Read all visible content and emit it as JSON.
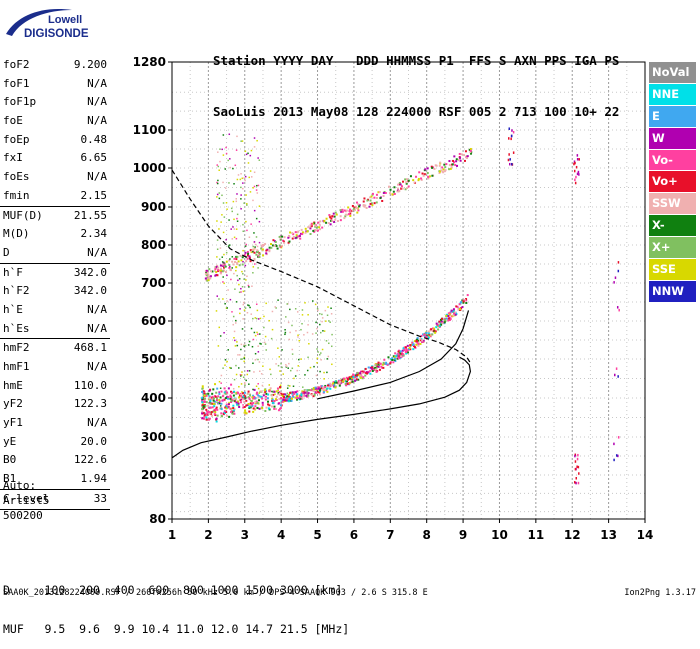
{
  "logo": {
    "line1": "Lowell",
    "line2": "DIGISONDE"
  },
  "header": {
    "line1": "Station YYYY DAY   DDD HHMMSS P1  FFS S AXN PPS IGA PS",
    "line2": "SaoLuis 2013 May08 128 224000 RSF 005 2 713 100 10+ 22"
  },
  "params": [
    {
      "k": "foF2",
      "v": "9.200"
    },
    {
      "k": "foF1",
      "v": "N/A"
    },
    {
      "k": "foF1p",
      "v": "N/A"
    },
    {
      "k": "foE",
      "v": "N/A"
    },
    {
      "k": "foEp",
      "v": "0.48"
    },
    {
      "k": "fxI",
      "v": "6.65"
    },
    {
      "k": "foEs",
      "v": "N/A"
    },
    {
      "k": "fmin",
      "v": "2.15"
    },
    {
      "sep": true
    },
    {
      "k": "MUF(D)",
      "v": "21.55"
    },
    {
      "k": "M(D)",
      "v": "2.34"
    },
    {
      "k": "D",
      "v": "N/A"
    },
    {
      "sep": true
    },
    {
      "k": "h`F",
      "v": "342.0"
    },
    {
      "k": "h`F2",
      "v": "342.0"
    },
    {
      "k": "h`E",
      "v": "N/A"
    },
    {
      "k": "h`Es",
      "v": "N/A"
    },
    {
      "sep": true
    },
    {
      "k": "hmF2",
      "v": "468.1"
    },
    {
      "k": "hmF1",
      "v": "N/A"
    },
    {
      "k": "hmE",
      "v": "110.0"
    },
    {
      "k": "yF2",
      "v": "122.3"
    },
    {
      "k": "yF1",
      "v": "N/A"
    },
    {
      "k": "yE",
      "v": "20.0"
    },
    {
      "k": "B0",
      "v": "122.6"
    },
    {
      "k": "B1",
      "v": "1.94"
    },
    {
      "sep": true
    },
    {
      "k": "C-level",
      "v": "33"
    },
    {
      "sep": true
    }
  ],
  "auto": [
    "Auto:",
    "Artist5",
    "500200"
  ],
  "legend": [
    {
      "label": "NoVal",
      "color": "#909090"
    },
    {
      "label": "NNE",
      "color": "#00e0e8"
    },
    {
      "label": "E",
      "color": "#40a8f0"
    },
    {
      "label": "W",
      "color": "#b000b0"
    },
    {
      "label": "Vo-",
      "color": "#ff40a0"
    },
    {
      "label": "Vo+",
      "color": "#e8102a"
    },
    {
      "label": "SSW",
      "color": "#f0b0b0"
    },
    {
      "label": "X-",
      "color": "#108010"
    },
    {
      "label": "X+",
      "color": "#80c060"
    },
    {
      "label": "SSE",
      "color": "#d8d800"
    },
    {
      "label": "NNW",
      "color": "#2020c0"
    }
  ],
  "footer": {
    "line1": "D     100  200  400  600  800 1000 1500 3000 [km]",
    "line2": "MUF   9.5  9.6  9.9 10.4 11.0 12.0 14.7 21.5 [MHz]"
  },
  "filename": "SAA0K_2013128224000.RSF / 260fx256h 50 kHz 5.0 km / DPS-4 SAA0K 903 / 2.6 S 315.8 E",
  "version": "Ion2Png 1.3.17",
  "chart_data": {
    "type": "scatter",
    "xlim": [
      1,
      14
    ],
    "ylim": [
      80,
      1280
    ],
    "xticks": [
      1,
      2,
      3,
      4,
      5,
      6,
      7,
      8,
      9,
      10,
      11,
      12,
      13,
      14
    ],
    "yticks": [
      80,
      200,
      300,
      400,
      500,
      600,
      700,
      800,
      900,
      1000,
      1100,
      1280
    ],
    "grid": true,
    "traces": [
      {
        "x": 1.2,
        "y": 350
      },
      {
        "x": 9.2,
        "y": 475
      },
      {
        "x": 1.4,
        "y": 388
      },
      {
        "x": 10.3,
        "y": 1100
      },
      {
        "x": 12.1,
        "y": 1040
      },
      {
        "x": 13.2,
        "y": 650
      }
    ],
    "profile_line": {
      "style": "solid",
      "x": [
        1.0,
        1.3,
        1.8,
        2.5,
        3.2,
        4.0,
        5.0,
        6.0,
        7.0,
        7.8,
        8.5,
        8.9,
        9.1,
        9.2,
        9.17,
        9.05,
        8.9
      ],
      "y": [
        245,
        265,
        285,
        300,
        315,
        330,
        345,
        358,
        372,
        385,
        402,
        420,
        440,
        468,
        485,
        497,
        505
      ]
    },
    "virtual_line": {
      "style": "solid",
      "x": [
        5.0,
        6.0,
        7.0,
        7.8,
        8.4,
        8.8,
        9.0,
        9.15
      ],
      "y": [
        398,
        418,
        440,
        468,
        500,
        540,
        580,
        628
      ]
    },
    "dashed_line": {
      "style": "dashed",
      "x": [
        1.0,
        1.5,
        2.0,
        2.6,
        3.2,
        4.0,
        5.0,
        6.0,
        7.0,
        7.8,
        8.3,
        8.8,
        9.1,
        9.2
      ],
      "y": [
        995,
        920,
        850,
        790,
        760,
        730,
        690,
        640,
        590,
        560,
        545,
        525,
        505,
        490
      ]
    }
  }
}
